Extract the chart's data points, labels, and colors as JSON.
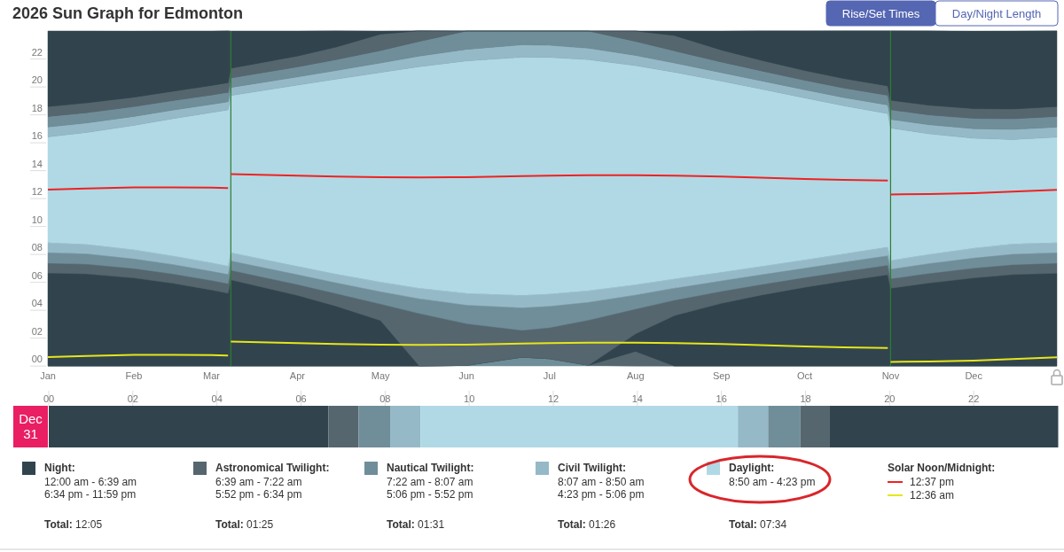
{
  "chart_data": [
    {
      "type": "area",
      "title": "2026 Sun Graph for Edmonton",
      "stacked": true,
      "x": [
        "2026-01-01",
        "2026-01-15",
        "2026-02-01",
        "2026-02-15",
        "2026-03-01",
        "2026-03-07",
        "2026-03-08",
        "2026-04-01",
        "2026-04-15",
        "2026-05-01",
        "2026-05-15",
        "2026-06-01",
        "2026-06-21",
        "2026-07-01",
        "2026-07-15",
        "2026-08-01",
        "2026-08-15",
        "2026-09-01",
        "2026-09-15",
        "2026-10-01",
        "2026-10-15",
        "2026-10-31",
        "2026-11-01",
        "2026-11-15",
        "2026-12-01",
        "2026-12-15",
        "2026-12-31"
      ],
      "xlim": [
        "2026-01-01",
        "2026-12-31"
      ],
      "xticks": [
        {
          "value": "2026-01-01",
          "label": "Jan"
        },
        {
          "value": "2026-02-01",
          "label": "Feb"
        },
        {
          "value": "2026-03-01",
          "label": "Mar"
        },
        {
          "value": "2026-04-01",
          "label": "Apr"
        },
        {
          "value": "2026-05-01",
          "label": "May"
        },
        {
          "value": "2026-06-01",
          "label": "Jun"
        },
        {
          "value": "2026-07-01",
          "label": "Jul"
        },
        {
          "value": "2026-08-01",
          "label": "Aug"
        },
        {
          "value": "2026-09-01",
          "label": "Sep"
        },
        {
          "value": "2026-10-01",
          "label": "Oct"
        },
        {
          "value": "2026-11-01",
          "label": "Nov"
        },
        {
          "value": "2026-12-01",
          "label": "Dec"
        }
      ],
      "ylim": [
        0,
        24
      ],
      "yticks": [
        {
          "value": 0.5,
          "label": "00"
        },
        {
          "value": 2.5,
          "label": "02"
        },
        {
          "value": 4.5,
          "label": "04"
        },
        {
          "value": 6.5,
          "label": "06"
        },
        {
          "value": 8.5,
          "label": "08"
        },
        {
          "value": 10.5,
          "label": "10"
        },
        {
          "value": 12.5,
          "label": "12"
        },
        {
          "value": 14.5,
          "label": "14"
        },
        {
          "value": 16.5,
          "label": "16"
        },
        {
          "value": 18.5,
          "label": "18"
        },
        {
          "value": 20.5,
          "label": "20"
        },
        {
          "value": 22.5,
          "label": "22"
        }
      ],
      "series": [
        {
          "color": "#6f8e99",
          "values": [
            0,
            0,
            0,
            0,
            0,
            0,
            0,
            0,
            0,
            0,
            0,
            0.04,
            0.63,
            0.52,
            0.05,
            0,
            0,
            0,
            0,
            0,
            0,
            0,
            0,
            0,
            0,
            0,
            0
          ]
        },
        {
          "color": "#56666e",
          "values": [
            0,
            0,
            0,
            0,
            0,
            0,
            0,
            0,
            0,
            0,
            0,
            0,
            0,
            0,
            0,
            1.05,
            0,
            0,
            0,
            0,
            0,
            0,
            0,
            0,
            0,
            0,
            0
          ]
        },
        {
          "color": "#31444e",
          "values": [
            6.66,
            6.6,
            6.31,
            5.93,
            5.45,
            5.21,
            6.17,
            5.06,
            4.29,
            3.26,
            0,
            0,
            0,
            0,
            0,
            1.25,
            3.61,
            4.49,
            5.07,
            5.64,
            6.08,
            6.54,
            5.57,
            5.95,
            6.31,
            6.55,
            6.65
          ]
        },
        {
          "color": "#56666e",
          "values": [
            0.71,
            0.7,
            0.68,
            0.67,
            0.68,
            0.69,
            0.69,
            0.78,
            0.9,
            1.18,
            3.76,
            2.99,
            1.93,
            2.23,
            3.23,
            1.78,
            1.1,
            0.86,
            0.76,
            0.7,
            0.68,
            0.68,
            0.68,
            0.69,
            0.7,
            0.71,
            0.72
          ]
        },
        {
          "color": "#6f8e99",
          "values": [
            0.76,
            0.74,
            0.7,
            0.68,
            0.67,
            0.68,
            0.68,
            0.72,
            0.78,
            0.89,
            1.06,
            1.34,
            1.62,
            1.54,
            1.29,
            1.01,
            0.87,
            0.76,
            0.71,
            0.68,
            0.68,
            0.69,
            0.69,
            0.71,
            0.74,
            0.76,
            0.75
          ]
        },
        {
          "color": "#95b9c7",
          "values": [
            0.71,
            0.68,
            0.64,
            0.61,
            0.59,
            0.58,
            0.58,
            0.59,
            0.62,
            0.68,
            0.75,
            0.83,
            0.89,
            0.87,
            0.82,
            0.73,
            0.66,
            0.61,
            0.59,
            0.58,
            0.59,
            0.62,
            0.62,
            0.65,
            0.69,
            0.72,
            0.72
          ]
        },
        {
          "color": "#b0d9e5",
          "values": [
            7.57,
            8.01,
            8.91,
            9.83,
            10.77,
            11.19,
            11.26,
            12.97,
            13.96,
            15.02,
            15.88,
            16.66,
            17.05,
            16.95,
            16.56,
            15.7,
            14.81,
            13.69,
            12.73,
            11.61,
            10.62,
            9.55,
            9.49,
            8.63,
            7.87,
            7.49,
            7.55
          ]
        },
        {
          "color": "#95b9c7",
          "values": [
            0.71,
            0.68,
            0.64,
            0.61,
            0.59,
            0.58,
            0.58,
            0.59,
            0.62,
            0.68,
            0.75,
            0.83,
            0.89,
            0.87,
            0.82,
            0.73,
            0.66,
            0.61,
            0.59,
            0.58,
            0.59,
            0.62,
            0.62,
            0.65,
            0.69,
            0.72,
            0.72
          ]
        },
        {
          "color": "#6f8e99",
          "values": [
            0.76,
            0.74,
            0.7,
            0.68,
            0.67,
            0.68,
            0.68,
            0.72,
            0.78,
            0.89,
            1.06,
            1.31,
            0.99,
            1.02,
            1.23,
            1.01,
            0.87,
            0.76,
            0.71,
            0.68,
            0.68,
            0.69,
            0.69,
            0.71,
            0.74,
            0.76,
            0.77
          ]
        },
        {
          "color": "#56666e",
          "values": [
            0.71,
            0.7,
            0.68,
            0.67,
            0.68,
            0.69,
            0.69,
            0.78,
            0.9,
            1.18,
            0.75,
            0,
            0,
            0,
            0,
            0.74,
            1.1,
            0.86,
            0.76,
            0.7,
            0.68,
            0.68,
            0.68,
            0.69,
            0.7,
            0.71,
            0.7
          ]
        },
        {
          "color": "#31444e",
          "values": [
            5.41,
            5.15,
            4.73,
            4.32,
            3.9,
            3.71,
            2.67,
            1.79,
            1.16,
            0.22,
            0,
            0,
            0,
            0,
            0,
            0,
            0.32,
            1.36,
            2.09,
            2.84,
            3.42,
            3.95,
            4.98,
            5.33,
            5.55,
            5.58,
            5.43
          ]
        },
        {
          "type": "line",
          "color": "#ee2222",
          "x": [
            "2026-01-01",
            "2026-01-15",
            "2026-02-01",
            "2026-02-15",
            "2026-03-01",
            "2026-03-07",
            "2026-03-07T12:00",
            "2026-03-08",
            "2026-04-01",
            "2026-04-15",
            "2026-05-01",
            "2026-05-15",
            "2026-06-01",
            "2026-06-21",
            "2026-07-01",
            "2026-07-15",
            "2026-08-01",
            "2026-08-15",
            "2026-09-01",
            "2026-09-15",
            "2026-10-01",
            "2026-10-15",
            "2026-10-31",
            "2026-10-31T12:00",
            "2026-11-01",
            "2026-11-15",
            "2026-12-01",
            "2026-12-15",
            "2026-12-31"
          ],
          "values": [
            12.63,
            12.72,
            12.79,
            12.8,
            12.77,
            12.75,
            null,
            13.75,
            13.64,
            13.57,
            13.52,
            13.51,
            13.53,
            13.6,
            13.63,
            13.67,
            13.67,
            13.64,
            13.57,
            13.49,
            13.4,
            13.33,
            13.29,
            null,
            12.29,
            12.31,
            12.38,
            12.49,
            12.62
          ]
        },
        {
          "type": "line",
          "color": "#e6e61a",
          "x": [
            "2026-01-01",
            "2026-01-15",
            "2026-02-01",
            "2026-02-15",
            "2026-03-01",
            "2026-03-07",
            "2026-03-07T12:00",
            "2026-03-08",
            "2026-04-01",
            "2026-04-15",
            "2026-05-01",
            "2026-05-15",
            "2026-06-01",
            "2026-06-21",
            "2026-07-01",
            "2026-07-15",
            "2026-08-01",
            "2026-08-15",
            "2026-09-01",
            "2026-09-15",
            "2026-10-01",
            "2026-10-15",
            "2026-10-31",
            "2026-10-31T12:00",
            "2026-11-01",
            "2026-11-15",
            "2026-12-01",
            "2026-12-15",
            "2026-12-31"
          ],
          "values": [
            0.63,
            0.72,
            0.79,
            0.8,
            0.77,
            0.75,
            null,
            1.75,
            1.64,
            1.57,
            1.52,
            1.51,
            1.53,
            1.6,
            1.63,
            1.67,
            1.67,
            1.64,
            1.57,
            1.49,
            1.4,
            1.33,
            1.29,
            null,
            0.29,
            0.31,
            0.38,
            0.49,
            0.62
          ]
        }
      ],
      "ref_lines": [
        {
          "axis": "x",
          "value": "2026-03-08",
          "color": "#2e7d32"
        },
        {
          "axis": "x",
          "value": "2026-11-01",
          "color": "#2e7d32"
        }
      ],
      "annotations": [
        "Rise/Set Times",
        "Day/Night Length"
      ]
    },
    {
      "type": "bar",
      "orientation": "horizontal",
      "stacked": true,
      "categories": [
        "Dec 31"
      ],
      "xlim": [
        0,
        24
      ],
      "xticks": [
        {
          "value": 0,
          "label": "00"
        },
        {
          "value": 2,
          "label": "02"
        },
        {
          "value": 4,
          "label": "04"
        },
        {
          "value": 6,
          "label": "06"
        },
        {
          "value": 8,
          "label": "08"
        },
        {
          "value": 10,
          "label": "10"
        },
        {
          "value": 12,
          "label": "12"
        },
        {
          "value": 14,
          "label": "14"
        },
        {
          "value": 16,
          "label": "16"
        },
        {
          "value": 18,
          "label": "18"
        },
        {
          "value": 20,
          "label": "20"
        },
        {
          "value": 22,
          "label": "22"
        }
      ],
      "series": [
        {
          "name": "Night:",
          "color": "#31444e",
          "values": [
            6.65
          ]
        },
        {
          "name": "Astronomical Twilight:",
          "color": "#56666e",
          "values": [
            0.72
          ]
        },
        {
          "name": "Nautical Twilight:",
          "color": "#6f8e99",
          "values": [
            0.75
          ]
        },
        {
          "name": "Civil Twilight:",
          "color": "#95b9c7",
          "values": [
            0.72
          ]
        },
        {
          "name": "Daylight:",
          "color": "#b0d9e5",
          "values": [
            7.55
          ]
        },
        {
          "color": "#95b9c7",
          "values": [
            0.72
          ]
        },
        {
          "color": "#6f8e99",
          "values": [
            0.77
          ]
        },
        {
          "color": "#56666e",
          "values": [
            0.7
          ]
        },
        {
          "color": "#31444e",
          "values": [
            5.43
          ]
        }
      ],
      "legend": "bottom",
      "annotations": [
        "12:00 am - 6:39 am",
        "6:34 pm - 11:59 pm",
        "Total: 12:05",
        "6:39 am - 7:22 am",
        "5:52 pm - 6:34 pm",
        "Total: 01:25",
        "7:22 am - 8:07 am",
        "5:06 pm - 5:52 pm",
        "Total: 01:31",
        "8:07 am - 8:50 am",
        "4:23 pm - 5:06 pm",
        "Total: 01:26",
        "8:50 am - 4:23 pm",
        "Total: 07:34",
        "Solar Noon/Midnight:",
        "12:37 pm",
        "12:36 am"
      ]
    }
  ]
}
